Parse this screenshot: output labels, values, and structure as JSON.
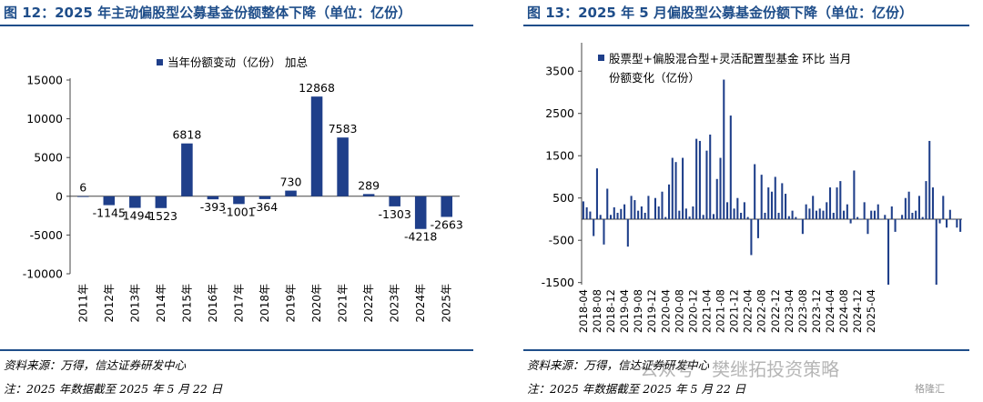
{
  "left": {
    "title": "图 12：2025 年主动偏股型公募基金份额整体下降（单位：亿份）",
    "source": "资料来源：万得，信达证券研发中心",
    "note": "注：2025 年数据截至 2025 年 5 月 22 日"
  },
  "right": {
    "title": "图 13：2025 年 5 月偏股型公募基金份额下降（单位：亿份）",
    "source": "资料来源：万得，信达证券研发中心",
    "note": "注：2025 年数据截至 2025 年 5 月 22 日",
    "watermark": "公众号 · 樊继拓投资策略",
    "watermark2": "格隆汇"
  },
  "colors": {
    "bar": "#1f3f8a",
    "title": "#1f4e8a"
  },
  "chart_data": [
    {
      "type": "bar",
      "legend": "当年份额变动（亿份） 加总",
      "legend_position": "top-center",
      "categories": [
        "2011年",
        "2012年",
        "2013年",
        "2014年",
        "2015年",
        "2016年",
        "2017年",
        "2018年",
        "2019年",
        "2020年",
        "2021年",
        "2022年",
        "2023年",
        "2024年",
        "2025年"
      ],
      "values": [
        6,
        -1145,
        -1494,
        -1523,
        6818,
        -393,
        -1001,
        -364,
        730,
        12868,
        7583,
        289,
        -1303,
        -4218,
        -2663
      ],
      "data_labels": [
        "6",
        "-1145",
        "-1494",
        "-1523",
        "6818",
        "-393",
        "-1001",
        "-364",
        "730",
        "12868",
        "7583",
        "289",
        "-1303",
        "-4218",
        "-2663"
      ],
      "yticks": [
        15000,
        10000,
        5000,
        0,
        -5000,
        -10000
      ],
      "ylim": [
        -10000,
        15000
      ],
      "grid": false
    },
    {
      "type": "bar",
      "legend": "股票型+偏股混合型+灵活配置型基金 环比 当月份额变化（亿份）",
      "legend_position": "top-left",
      "xtick_labels": [
        "2018-04",
        "2018-08",
        "2018-12",
        "2019-04",
        "2019-08",
        "2019-12",
        "2020-04",
        "2020-08",
        "2020-12",
        "2021-04",
        "2021-08",
        "2021-12",
        "2022-04",
        "2022-08",
        "2022-12",
        "2023-04",
        "2023-08",
        "2023-12",
        "2024-04",
        "2024-08",
        "2024-12",
        "2025-04"
      ],
      "x_start": "2018-04",
      "x_end": "2025-05",
      "values": [
        420,
        280,
        180,
        -400,
        1200,
        100,
        -600,
        720,
        100,
        280,
        150,
        240,
        350,
        -650,
        550,
        450,
        200,
        300,
        150,
        550,
        0,
        500,
        300,
        650,
        50,
        820,
        1450,
        1350,
        200,
        1450,
        250,
        60,
        300,
        1900,
        1850,
        100,
        1620,
        2000,
        120,
        950,
        1450,
        3300,
        400,
        2450,
        250,
        500,
        150,
        400,
        50,
        -850,
        1300,
        -450,
        1050,
        150,
        750,
        650,
        1000,
        150,
        850,
        600,
        70,
        200,
        50,
        0,
        -350,
        350,
        250,
        550,
        200,
        250,
        200,
        400,
        750,
        150,
        750,
        900,
        200,
        350,
        -100,
        1150,
        50,
        0,
        400,
        -350,
        200,
        200,
        350,
        0,
        100,
        -1550,
        300,
        -300,
        0,
        100,
        500,
        650,
        150,
        200,
        550,
        50,
        900,
        1850,
        750,
        -1550,
        -100,
        550,
        -200,
        220,
        0,
        -200,
        -300
      ],
      "yticks": [
        3500,
        2500,
        1500,
        500,
        -500,
        -1500
      ],
      "ylim": [
        -1550,
        4000
      ],
      "grid": false
    }
  ]
}
